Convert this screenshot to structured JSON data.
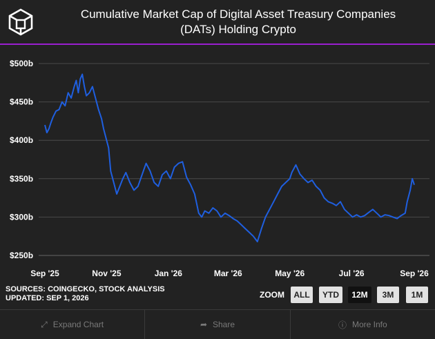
{
  "header": {
    "title_line1": "Cumulative Market Cap of Digital Asset Treasury Companies",
    "title_line2": "(DATs) Holding Crypto",
    "logo_icon": "cube-logo-icon",
    "accent_color": "#9b1fd1"
  },
  "chart_data": {
    "type": "line",
    "title": "Cumulative Market Cap of Digital Asset Treasury Companies (DATs) Holding Crypto",
    "xlabel": "",
    "ylabel": "",
    "ylim": [
      250,
      500
    ],
    "x_range": [
      "2025-09-01",
      "2026-09-01"
    ],
    "grid": true,
    "line_color": "#1f5fe0",
    "y_ticks": [
      {
        "value": 500,
        "label": "$500b"
      },
      {
        "value": 450,
        "label": "$450b"
      },
      {
        "value": 400,
        "label": "$400b"
      },
      {
        "value": 350,
        "label": "$350b"
      },
      {
        "value": 300,
        "label": "$300b"
      },
      {
        "value": 250,
        "label": "$250b"
      }
    ],
    "x_ticks": [
      {
        "date": "2025-09-01",
        "label": "Sep '25"
      },
      {
        "date": "2025-11-01",
        "label": "Nov '25"
      },
      {
        "date": "2026-01-01",
        "label": "Jan '26"
      },
      {
        "date": "2026-03-01",
        "label": "Mar '26"
      },
      {
        "date": "2026-05-01",
        "label": "May '26"
      },
      {
        "date": "2026-07-01",
        "label": "Jul '26"
      },
      {
        "date": "2026-09-01",
        "label": "Sep '26"
      }
    ],
    "series": [
      {
        "x": [
          "2025-09-01",
          "2025-09-03",
          "2025-09-05",
          "2025-09-07",
          "2025-09-09",
          "2025-09-12",
          "2025-09-15",
          "2025-09-18",
          "2025-09-21",
          "2025-09-24",
          "2025-09-27",
          "2025-09-30",
          "2025-10-02",
          "2025-10-04",
          "2025-10-06",
          "2025-10-08",
          "2025-10-10",
          "2025-10-12",
          "2025-10-15",
          "2025-10-18",
          "2025-10-21",
          "2025-10-24",
          "2025-10-27",
          "2025-10-29",
          "2025-11-01",
          "2025-11-03",
          "2025-11-05",
          "2025-11-08",
          "2025-11-11",
          "2025-11-14",
          "2025-11-17",
          "2025-11-20",
          "2025-11-24",
          "2025-11-28",
          "2025-12-02",
          "2025-12-06",
          "2025-12-10",
          "2025-12-14",
          "2025-12-18",
          "2025-12-22",
          "2025-12-26",
          "2025-12-30",
          "2026-01-03",
          "2026-01-07",
          "2026-01-11",
          "2026-01-15",
          "2026-01-19",
          "2026-01-23",
          "2026-01-27",
          "2026-01-31",
          "2026-02-03",
          "2026-02-06",
          "2026-02-10",
          "2026-02-14",
          "2026-02-18",
          "2026-02-22",
          "2026-02-26",
          "2026-03-02",
          "2026-03-06",
          "2026-03-10",
          "2026-03-14",
          "2026-03-18",
          "2026-03-22",
          "2026-03-26",
          "2026-03-30",
          "2026-04-03",
          "2026-04-07",
          "2026-04-11",
          "2026-04-15",
          "2026-04-19",
          "2026-04-23",
          "2026-04-27",
          "2026-05-01",
          "2026-05-03",
          "2026-05-07",
          "2026-05-11",
          "2026-05-15",
          "2026-05-19",
          "2026-05-23",
          "2026-05-27",
          "2026-05-31",
          "2026-06-04",
          "2026-06-08",
          "2026-06-12",
          "2026-06-16",
          "2026-06-20",
          "2026-06-24",
          "2026-06-28",
          "2026-07-02",
          "2026-07-06",
          "2026-07-10",
          "2026-07-14",
          "2026-07-18",
          "2026-07-22",
          "2026-07-26",
          "2026-07-30",
          "2026-08-03",
          "2026-08-07",
          "2026-08-11",
          "2026-08-15",
          "2026-08-19",
          "2026-08-23",
          "2026-08-25",
          "2026-08-28",
          "2026-08-30",
          "2026-09-01"
        ],
        "values": [
          420,
          410,
          415,
          423,
          430,
          438,
          440,
          450,
          445,
          462,
          455,
          470,
          478,
          462,
          480,
          486,
          470,
          458,
          462,
          470,
          455,
          440,
          428,
          415,
          400,
          390,
          360,
          345,
          330,
          340,
          350,
          358,
          345,
          335,
          340,
          355,
          370,
          360,
          345,
          340,
          355,
          360,
          350,
          365,
          370,
          372,
          352,
          342,
          330,
          305,
          300,
          308,
          305,
          312,
          308,
          300,
          305,
          302,
          298,
          295,
          290,
          285,
          280,
          275,
          268,
          285,
          300,
          310,
          320,
          330,
          340,
          345,
          350,
          358,
          368,
          356,
          350,
          345,
          348,
          340,
          335,
          325,
          320,
          318,
          315,
          320,
          310,
          305,
          300,
          303,
          300,
          302,
          306,
          310,
          305,
          300,
          303,
          302,
          300,
          298,
          302,
          305,
          320,
          335,
          350,
          342
        ]
      }
    ]
  },
  "sources": {
    "line1": "SOURCES: COINGECKO, STOCK ANALYSIS",
    "line2": "UPDATED: SEP 1, 2026"
  },
  "zoom": {
    "label": "ZOOM",
    "buttons": [
      "ALL",
      "YTD",
      "12M",
      "3M",
      "1M"
    ],
    "active": "12M"
  },
  "footer": {
    "expand": {
      "label": "Expand Chart",
      "icon": "expand-icon"
    },
    "share": {
      "label": "Share",
      "icon": "share-arrow-icon"
    },
    "info": {
      "label": "More Info",
      "icon": "info-icon"
    }
  }
}
